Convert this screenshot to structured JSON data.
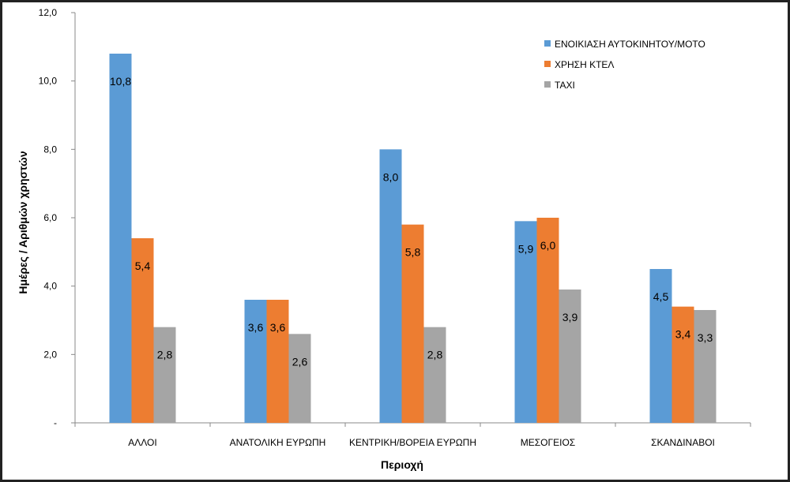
{
  "chart_data": {
    "type": "bar",
    "xlabel": "Περιοχή",
    "ylabel": "Ημέρες / Αριθμών χρηστών",
    "ylim": [
      0,
      12
    ],
    "yticks": [
      "-",
      "2,0",
      "4,0",
      "6,0",
      "8,0",
      "10,0",
      "12,0"
    ],
    "legend_position": "top-right",
    "grid": false,
    "categories": [
      "ΑΛΛΟΙ",
      "ΑΝΑΤΟΛΙΚΗ ΕΥΡΩΠΗ",
      "ΚΕΝΤΡΙΚΗ/ΒΟΡΕΙΑ ΕΥΡΩΠΗ",
      "ΜΕΣΟΓΕΙΟΣ",
      "ΣΚΑΝΔΙΝΑΒΟΙ"
    ],
    "series": [
      {
        "name": "ΕΝΟΙΚΙΑΣΗ ΑΥΤΟΚΙΝΗΤΟΥ/ΜΟΤΟ",
        "color": "#5b9bd5",
        "values": [
          10.8,
          3.6,
          8.0,
          5.9,
          4.5
        ],
        "labels": [
          "10,8",
          "3,6",
          "8,0",
          "5,9",
          "4,5"
        ]
      },
      {
        "name": "ΧΡΗΣΗ ΚΤΕΛ",
        "color": "#ed7d31",
        "values": [
          5.4,
          3.6,
          5.8,
          6.0,
          3.4
        ],
        "labels": [
          "5,4",
          "3,6",
          "5,8",
          "6,0",
          "3,4"
        ]
      },
      {
        "name": "ΤΑΧΙ",
        "color": "#a5a5a5",
        "values": [
          2.8,
          2.6,
          2.8,
          3.9,
          3.3
        ],
        "labels": [
          "2,8",
          "2,6",
          "2,8",
          "3,9",
          "3,3"
        ]
      }
    ]
  }
}
